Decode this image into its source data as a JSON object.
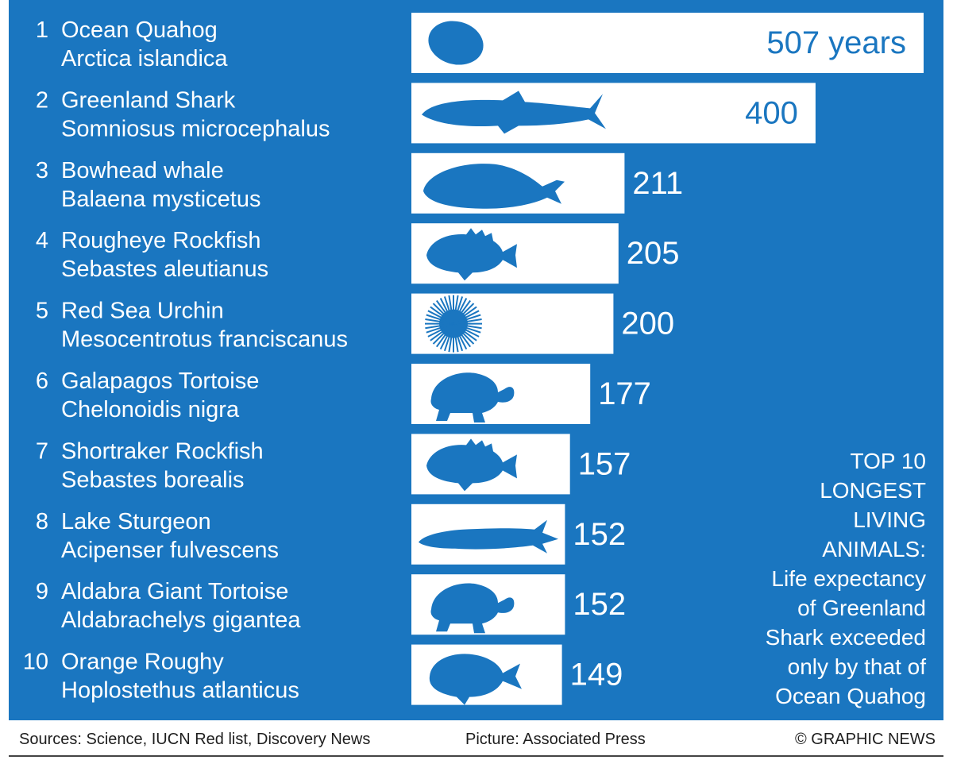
{
  "colors": {
    "background": "#1a76c0",
    "bar": "#ffffff",
    "text": "#ffffff",
    "footer_text": "#1e1e1e"
  },
  "chart_data": {
    "type": "bar",
    "orientation": "horizontal",
    "title": "TOP 10 LONGEST LIVING ANIMALS:",
    "subtitle": "Life expectancy of Greenland Shark exceeded only by that of Ocean Quahog",
    "categories": [
      {
        "rank": "1",
        "name": "Ocean Quahog",
        "latin": "Arctica islandica",
        "icon": "clam-icon"
      },
      {
        "rank": "2",
        "name": "Greenland Shark",
        "latin": "Somniosus microcephalus",
        "icon": "shark-icon"
      },
      {
        "rank": "3",
        "name": "Bowhead whale",
        "latin": "Balaena mysticetus",
        "icon": "whale-icon"
      },
      {
        "rank": "4",
        "name": "Rougheye Rockfish",
        "latin": "Sebastes aleutianus",
        "icon": "rockfish-icon"
      },
      {
        "rank": "5",
        "name": "Red Sea Urchin",
        "latin": "Mesocentrotus franciscanus",
        "icon": "urchin-icon"
      },
      {
        "rank": "6",
        "name": "Galapagos Tortoise",
        "latin": "Chelonoidis nigra",
        "icon": "tortoise-icon"
      },
      {
        "rank": "7",
        "name": "Shortraker Rockfish",
        "latin": "Sebastes borealis",
        "icon": "rockfish-icon"
      },
      {
        "rank": "8",
        "name": "Lake Sturgeon",
        "latin": "Acipenser fulvescens",
        "icon": "sturgeon-icon"
      },
      {
        "rank": "9",
        "name": "Aldabra Giant Tortoise",
        "latin": "Aldabrachelys gigantea",
        "icon": "tortoise-icon"
      },
      {
        "rank": "10",
        "name": "Orange Roughy",
        "latin": "Hoplostethus atlanticus",
        "icon": "roughy-icon"
      }
    ],
    "values": [
      507,
      400,
      211,
      205,
      200,
      177,
      157,
      152,
      152,
      149
    ],
    "value_labels": [
      "507 years",
      "400",
      "211",
      "205",
      "200",
      "177",
      "157",
      "152",
      "152",
      "149"
    ],
    "unit": "years"
  },
  "footer": {
    "sources": "Sources: Science, IUCN Red list, Discovery News",
    "picture": "Picture: Associated Press",
    "credit": "© GRAPHIC NEWS"
  },
  "title_lines": [
    "TOP 10",
    "LONGEST",
    "LIVING",
    "ANIMALS:",
    "Life expectancy",
    "of Greenland",
    "Shark exceeded",
    "only by that of",
    "Ocean Quahog"
  ]
}
